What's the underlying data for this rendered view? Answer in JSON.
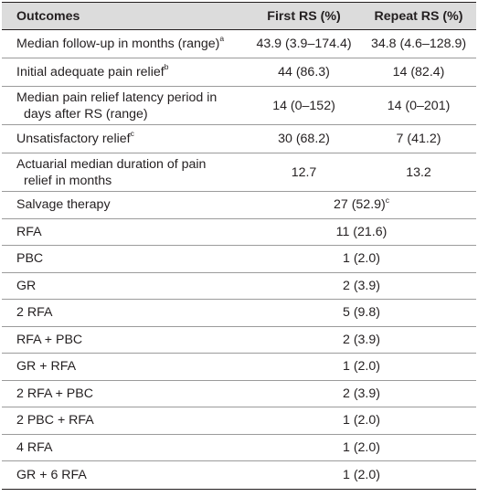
{
  "header": {
    "col_outcomes": "Outcomes",
    "col_first": "First RS (%)",
    "col_repeat": "Repeat RS (%)"
  },
  "rows": [
    {
      "label": "Median follow-up in months (range)",
      "sup": "a",
      "first": "43.9 (3.9–174.4)",
      "repeat": "34.8 (4.6–128.9)"
    },
    {
      "label": "Initial adequate pain relief",
      "sup": "b",
      "first": "44 (86.3)",
      "repeat": "14 (82.4)"
    },
    {
      "label_l1": "Median pain relief latency period in",
      "label_l2": "days after RS (range)",
      "first": "14 (0–152)",
      "repeat": "14 (0–201)"
    },
    {
      "label": "Unsatisfactory relief",
      "sup": "c",
      "first": "30 (68.2)",
      "repeat": "7 (41.2)"
    },
    {
      "label_l1": "Actuarial median duration of pain",
      "label_l2": "relief in months",
      "first": "12.7",
      "repeat": "13.2"
    }
  ],
  "salvage": {
    "label": "Salvage therapy",
    "value": "27 (52.9)",
    "sup": "c",
    "items": [
      {
        "label": "RFA",
        "value": "11 (21.6)"
      },
      {
        "label": "PBC",
        "value": "1 (2.0)"
      },
      {
        "label": "GR",
        "value": "2 (3.9)"
      },
      {
        "label": "2 RFA",
        "value": "5 (9.8)"
      },
      {
        "label": "RFA + PBC",
        "value": "2 (3.9)"
      },
      {
        "label": "GR + RFA",
        "value": "1 (2.0)"
      },
      {
        "label": "2 RFA + PBC",
        "value": "2 (3.9)"
      },
      {
        "label": "2 PBC + RFA",
        "value": "1 (2.0)"
      },
      {
        "label": "4 RFA",
        "value": "1 (2.0)"
      },
      {
        "label": "GR + 6 RFA",
        "value": "1 (2.0)"
      }
    ]
  }
}
